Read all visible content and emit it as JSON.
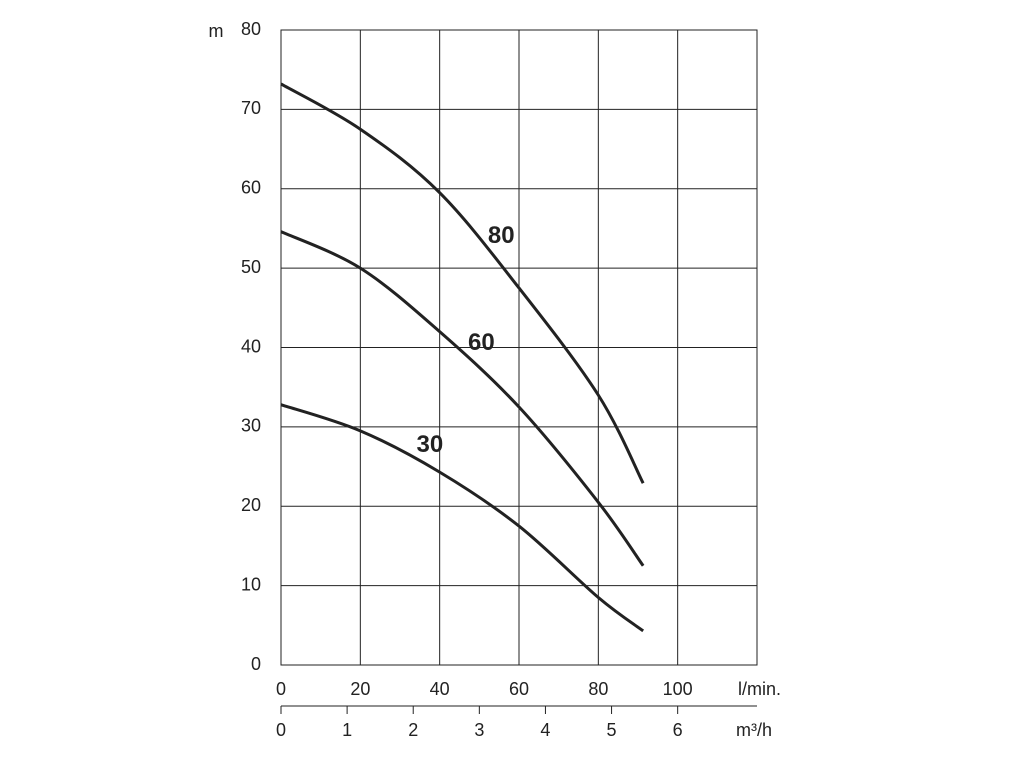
{
  "chart_data": {
    "type": "line",
    "y_label": "m",
    "x_label": "l/min.",
    "x2_label": "m³/h",
    "x": [
      0,
      20,
      40,
      60,
      80,
      91.3
    ],
    "series": [
      {
        "name": "80",
        "color": "#222222",
        "values": [
          73.2,
          67.5,
          59.5,
          47.5,
          34,
          22.9
        ]
      },
      {
        "name": "60",
        "color": "#222222",
        "values": [
          54.6,
          50,
          42,
          32.5,
          20.5,
          12.5
        ]
      },
      {
        "name": "30",
        "color": "#222222",
        "values": [
          32.8,
          29.5,
          24.3,
          17.5,
          8.5,
          4.3
        ]
      }
    ],
    "xlim": [
      0,
      120
    ],
    "xticks": [
      0,
      20,
      40,
      60,
      80,
      100
    ],
    "ylim": [
      0,
      80
    ],
    "yticks": [
      0,
      10,
      20,
      30,
      40,
      50,
      60,
      70,
      80
    ],
    "x2lim": [
      0,
      7.2
    ],
    "x2ticks": [
      0,
      1,
      2,
      3,
      4,
      5,
      6
    ],
    "grid": true
  }
}
